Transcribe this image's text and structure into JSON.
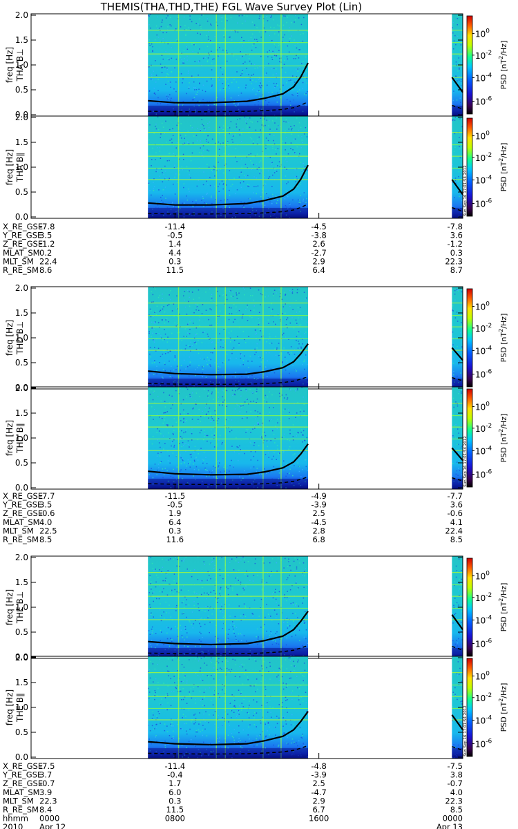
{
  "title": "THEMIS(THA,THD,THE) FGL Wave Survey Plot (Lin)",
  "chart_data": {
    "type": "heatmap",
    "x_range_hours": [
      0,
      24
    ],
    "y_range_hz": [
      0,
      2
    ],
    "y_ticks": [
      "0.0",
      "0.5",
      "1.0",
      "1.5",
      "2.0"
    ],
    "ylabel": "freq [Hz]",
    "colorbar": {
      "label": "PSD [nT²/Hz]",
      "label_prefix": "PSD [nT",
      "label_sup": "2",
      "label_suffix": "/Hz]",
      "scale": "log",
      "ticks": [
        {
          "base": "10",
          "exp": "0"
        },
        {
          "base": "10",
          "exp": "-2"
        },
        {
          "base": "10",
          "exp": "-4"
        },
        {
          "base": "10",
          "exp": "-6"
        }
      ]
    },
    "data_intervals_hours": [
      [
        6.5,
        15.4
      ],
      [
        23.4,
        24.0
      ]
    ],
    "stamp": "Sun Sep 16 17:01:54 2012",
    "probes": [
      {
        "id": "THA",
        "panels": [
          {
            "ylabel": "THA B⊥",
            "fce_x": [
              6.5,
              8,
              10,
              12,
              13,
              14,
              14.6,
              15.0,
              15.4,
              23.4,
              24
            ],
            "fce_y": [
              0.28,
              0.24,
              0.24,
              0.27,
              0.33,
              0.42,
              0.56,
              0.76,
              1.04,
              0.75,
              0.45
            ]
          },
          {
            "ylabel": "THA B∥",
            "fce_x": [
              6.5,
              8,
              10,
              12,
              13,
              14,
              14.6,
              15.0,
              15.4,
              23.4,
              24
            ],
            "fce_y": [
              0.28,
              0.24,
              0.24,
              0.27,
              0.33,
              0.42,
              0.56,
              0.76,
              1.04,
              0.75,
              0.45
            ]
          }
        ],
        "ephemeris": [
          {
            "label": "X_RE_GSE",
            "values": [
              "-7.8",
              "-11.4",
              "-4.5",
              "-7.8"
            ]
          },
          {
            "label": "Y_RE_GSE",
            "values": [
              "3.5",
              "-0.5",
              "-3.8",
              "3.6"
            ]
          },
          {
            "label": "Z_RE_GSE",
            "values": [
              "-1.2",
              "1.4",
              "2.6",
              "-1.2"
            ]
          },
          {
            "label": "MLAT_SM",
            "values": [
              "0.2",
              "4.4",
              "-2.7",
              "0.3"
            ]
          },
          {
            "label": "MLT_SM",
            "values": [
              "22.4",
              "0.3",
              "2.9",
              "22.3"
            ]
          },
          {
            "label": "R_RE_SM",
            "values": [
              "8.6",
              "11.5",
              "6.4",
              "8.7"
            ]
          }
        ]
      },
      {
        "id": "THD",
        "panels": [
          {
            "ylabel": "THD B⊥",
            "fce_x": [
              6.5,
              8,
              10,
              12,
              13,
              14,
              14.6,
              15.0,
              15.4,
              23.4,
              24
            ],
            "fce_y": [
              0.33,
              0.28,
              0.26,
              0.27,
              0.32,
              0.4,
              0.52,
              0.68,
              0.88,
              0.8,
              0.55
            ]
          },
          {
            "ylabel": "THD B∥",
            "fce_x": [
              6.5,
              8,
              10,
              12,
              13,
              14,
              14.6,
              15.0,
              15.4,
              23.4,
              24
            ],
            "fce_y": [
              0.33,
              0.28,
              0.26,
              0.27,
              0.32,
              0.4,
              0.52,
              0.68,
              0.88,
              0.8,
              0.55
            ]
          }
        ],
        "ephemeris": [
          {
            "label": "X_RE_GSE",
            "values": [
              "-7.7",
              "-11.5",
              "-4.9",
              "-7.7"
            ]
          },
          {
            "label": "Y_RE_GSE",
            "values": [
              "3.5",
              "-0.5",
              "-3.9",
              "3.6"
            ]
          },
          {
            "label": "Z_RE_GSE",
            "values": [
              "-0.6",
              "1.9",
              "2.5",
              "-0.6"
            ]
          },
          {
            "label": "MLAT_SM",
            "values": [
              "4.0",
              "6.4",
              "-4.5",
              "4.1"
            ]
          },
          {
            "label": "MLT_SM",
            "values": [
              "22.5",
              "0.3",
              "2.8",
              "22.4"
            ]
          },
          {
            "label": "R_RE_SM",
            "values": [
              "8.5",
              "11.6",
              "6.8",
              "8.5"
            ]
          }
        ]
      },
      {
        "id": "THE",
        "panels": [
          {
            "ylabel": "THE B⊥",
            "fce_x": [
              6.5,
              8,
              10,
              12,
              13,
              14,
              14.6,
              15.0,
              15.4,
              23.4,
              24
            ],
            "fce_y": [
              0.31,
              0.27,
              0.25,
              0.27,
              0.33,
              0.42,
              0.55,
              0.72,
              0.92,
              0.85,
              0.55
            ]
          },
          {
            "ylabel": "THE B∥",
            "fce_x": [
              6.5,
              8,
              10,
              12,
              13,
              14,
              14.6,
              15.0,
              15.4,
              23.4,
              24
            ],
            "fce_y": [
              0.31,
              0.27,
              0.25,
              0.27,
              0.33,
              0.42,
              0.55,
              0.72,
              0.92,
              0.85,
              0.55
            ]
          }
        ],
        "ephemeris": [
          {
            "label": "X_RE_GSE",
            "values": [
              "-7.5",
              "-11.4",
              "-4.8",
              "-7.5"
            ]
          },
          {
            "label": "Y_RE_GSE",
            "values": [
              "3.7",
              "-0.4",
              "-3.9",
              "3.8"
            ]
          },
          {
            "label": "Z_RE_GSE",
            "values": [
              "-0.7",
              "1.7",
              "2.5",
              "-0.7"
            ]
          },
          {
            "label": "MLAT_SM",
            "values": [
              "3.9",
              "6.0",
              "-4.7",
              "4.0"
            ]
          },
          {
            "label": "MLT_SM",
            "values": [
              "22.3",
              "0.3",
              "2.9",
              "22.3"
            ]
          },
          {
            "label": "R_RE_SM",
            "values": [
              "8.4",
              "11.5",
              "6.7",
              "8.5"
            ]
          }
        ]
      }
    ],
    "time_axis": {
      "rows": [
        {
          "label": "hhmm",
          "values": [
            "0000",
            "0800",
            "1600",
            "0000"
          ]
        },
        {
          "label": "2010",
          "values": [
            "Apr 12",
            "",
            "",
            "Apr 13"
          ]
        }
      ]
    }
  }
}
